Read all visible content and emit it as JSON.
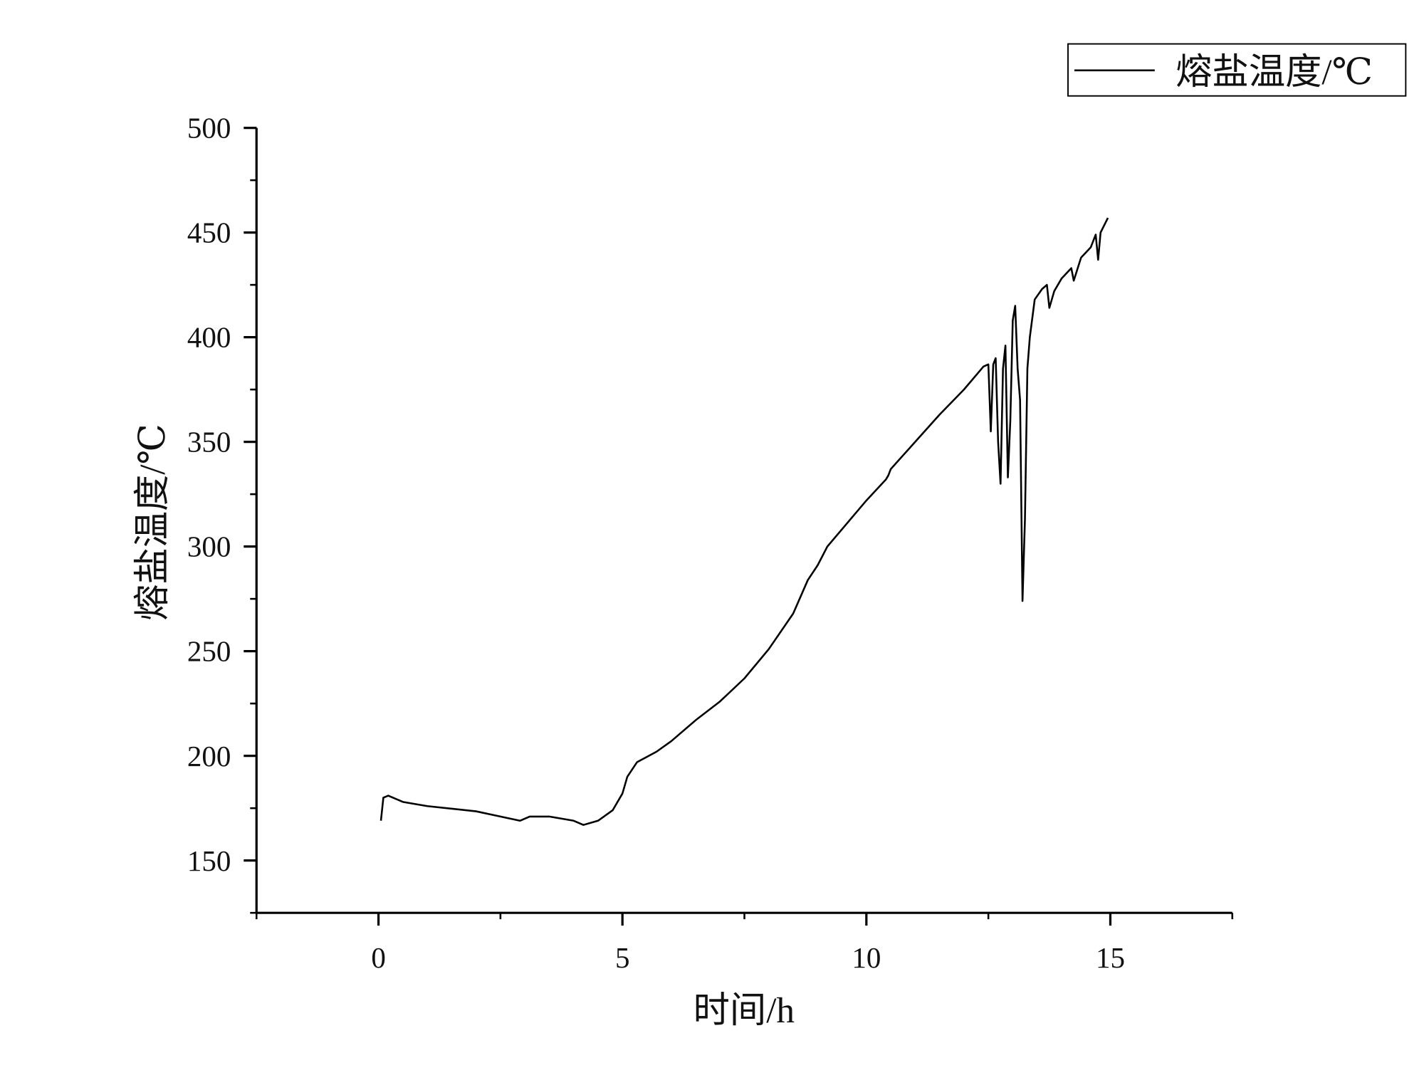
{
  "chart_data": {
    "type": "line",
    "x_label": "时间/h",
    "y_label": "熔盐温度/℃",
    "x": [
      0.05,
      0.1,
      0.2,
      0.5,
      1,
      2,
      2.9,
      3.1,
      3.5,
      4,
      4.2,
      4.5,
      4.8,
      5.0,
      5.1,
      5.3,
      5.7,
      6,
      6.5,
      7,
      7.5,
      8,
      8.5,
      8.8,
      9,
      9.2,
      9.6,
      10,
      10.4,
      10.45,
      10.5,
      11,
      11.5,
      12,
      12.4,
      12.5,
      12.55,
      12.6,
      12.65,
      12.7,
      12.75,
      12.8,
      12.85,
      12.9,
      12.95,
      13.0,
      13.05,
      13.1,
      13.15,
      13.2,
      13.25,
      13.3,
      13.35,
      13.45,
      13.6,
      13.7,
      13.75,
      13.85,
      14,
      14.2,
      14.25,
      14.4,
      14.6,
      14.7,
      14.75,
      14.8,
      14.95
    ],
    "series": [
      {
        "name": "熔盐温度/℃",
        "color": "#000000",
        "values": [
          169,
          180,
          181,
          178,
          176,
          173.5,
          169,
          171,
          171,
          169,
          167,
          169,
          174,
          182,
          190,
          197,
          202,
          207,
          217,
          226,
          237,
          251,
          268,
          284,
          291,
          300,
          311,
          322,
          332,
          334,
          337,
          350,
          363,
          375,
          386,
          387,
          355,
          387,
          390,
          350,
          330,
          385,
          396,
          333,
          360,
          408,
          415,
          385,
          370,
          274,
          313,
          385,
          400,
          418,
          423,
          425,
          414,
          422,
          428,
          433,
          427,
          438,
          443,
          449,
          437,
          450,
          457
        ]
      }
    ],
    "xlim": [
      -2.5,
      17.5
    ],
    "xticks": [
      0,
      5,
      10,
      15
    ],
    "ylim": [
      125,
      500
    ],
    "yticks": [
      150,
      200,
      250,
      300,
      350,
      400,
      450,
      500
    ],
    "legend": "upper right"
  }
}
